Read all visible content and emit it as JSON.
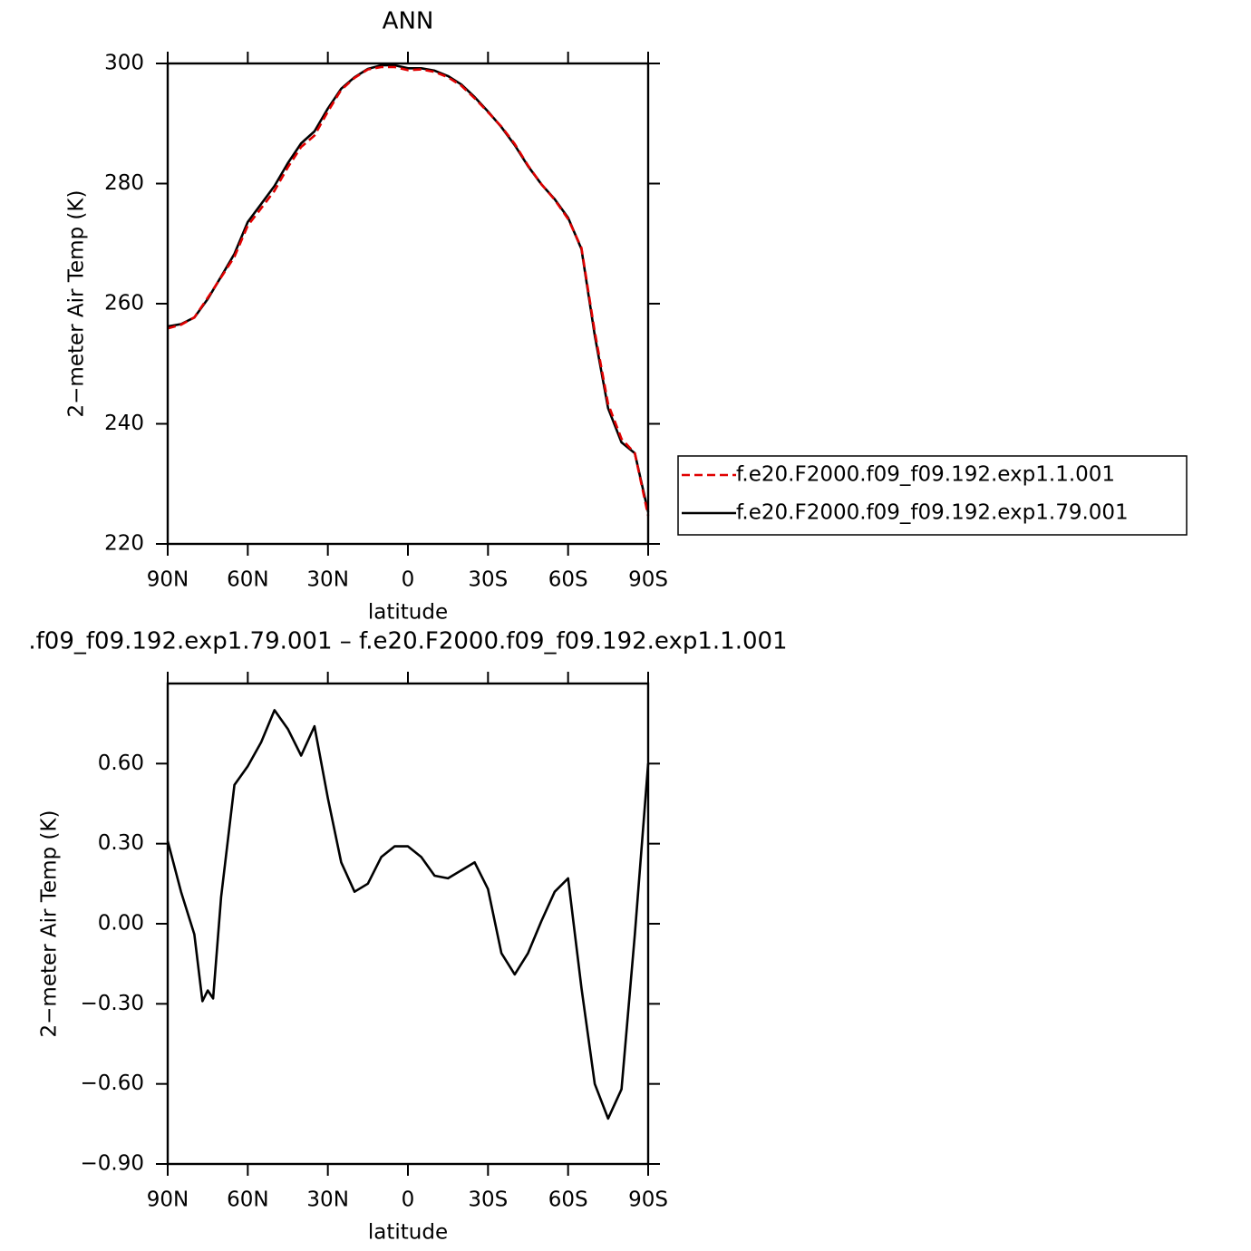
{
  "chart_data": [
    {
      "type": "line",
      "title": "ANN",
      "x_label": "latitude",
      "y_label": "2−meter Air Temp (K)",
      "x": [
        90,
        85,
        80,
        75,
        70,
        65,
        60,
        55,
        50,
        45,
        40,
        35,
        30,
        25,
        20,
        15,
        10,
        5,
        0,
        -5,
        -10,
        -15,
        -20,
        -25,
        -30,
        -35,
        -40,
        -45,
        -50,
        -55,
        -60,
        -65,
        -70,
        -75,
        -80,
        -85,
        -90
      ],
      "xlim": [
        90,
        -90
      ],
      "xticks": [
        {
          "value": 90,
          "label": "90N"
        },
        {
          "value": 60,
          "label": "60N"
        },
        {
          "value": 30,
          "label": "30N"
        },
        0,
        {
          "value": -30,
          "label": "30S"
        },
        {
          "value": -60,
          "label": "60S"
        },
        {
          "value": -90,
          "label": "90S"
        }
      ],
      "ylim": [
        220,
        300
      ],
      "yticks": [
        220,
        240,
        260,
        280,
        300
      ],
      "legend": "right",
      "series": [
        {
          "name": "f.e20.F2000.f09_f09.192.exp1.1.001",
          "color": "#e00000",
          "line_style": "dashed",
          "values": [
            255.9,
            256.5,
            257.7,
            261.0,
            264.4,
            267.8,
            273.0,
            275.9,
            278.8,
            282.7,
            286.1,
            288.0,
            292.0,
            295.6,
            297.6,
            299.0,
            299.4,
            299.4,
            298.9,
            299.0,
            298.6,
            297.7,
            296.3,
            294.2,
            291.9,
            289.5,
            286.6,
            283.0,
            279.9,
            277.3,
            274.1,
            269.3,
            255.3,
            243.3,
            237.5,
            235.1,
            224.7
          ]
        },
        {
          "name": "f.e20.F2000.f09_f09.192.exp1.79.001",
          "color": "#000000",
          "line_style": "solid",
          "values": [
            256.2,
            256.6,
            257.7,
            260.8,
            264.5,
            268.3,
            273.6,
            276.6,
            279.6,
            283.4,
            286.7,
            288.7,
            292.5,
            295.8,
            297.7,
            299.1,
            299.7,
            299.7,
            299.2,
            299.2,
            298.8,
            297.9,
            296.5,
            294.4,
            292.0,
            289.4,
            286.4,
            282.9,
            279.9,
            277.4,
            274.3,
            269.1,
            254.7,
            242.6,
            236.9,
            235.1,
            225.3
          ]
        }
      ]
    },
    {
      "type": "line",
      "title": ".f09_f09.192.exp1.79.001 – f.e20.F2000.f09_f09.192.exp1.1.001",
      "x_label": "latitude",
      "y_label": "2−meter Air Temp (K)",
      "x": [
        90,
        85,
        80,
        77,
        75,
        73,
        70,
        65,
        60,
        55,
        50,
        45,
        40,
        35,
        30,
        25,
        20,
        15,
        10,
        5,
        0,
        -5,
        -10,
        -15,
        -20,
        -25,
        -30,
        -35,
        -40,
        -45,
        -50,
        -55,
        -60,
        -65,
        -70,
        -75,
        -80,
        -85,
        -90
      ],
      "xlim": [
        90,
        -90
      ],
      "xticks": [
        {
          "value": 90,
          "label": "90N"
        },
        {
          "value": 60,
          "label": "60N"
        },
        {
          "value": 30,
          "label": "30N"
        },
        0,
        {
          "value": -30,
          "label": "30S"
        },
        {
          "value": -60,
          "label": "60S"
        },
        {
          "value": -90,
          "label": "90S"
        }
      ],
      "ylim": [
        -0.9,
        0.9
      ],
      "yticks": [
        {
          "value": -0.9,
          "label": "−0.90"
        },
        {
          "value": -0.6,
          "label": "−0.60"
        },
        {
          "value": -0.3,
          "label": "−0.30"
        },
        {
          "value": 0,
          "label": "0.00"
        },
        {
          "value": 0.3,
          "label": "0.30"
        },
        {
          "value": 0.6,
          "label": "0.60"
        }
      ],
      "color": "#000000",
      "values": [
        0.31,
        0.12,
        -0.04,
        -0.29,
        -0.25,
        -0.28,
        0.1,
        0.52,
        0.59,
        0.68,
        0.8,
        0.73,
        0.63,
        0.74,
        0.47,
        0.23,
        0.12,
        0.15,
        0.25,
        0.29,
        0.29,
        0.25,
        0.18,
        0.17,
        0.2,
        0.23,
        0.13,
        -0.11,
        -0.19,
        -0.11,
        0.01,
        0.12,
        0.17,
        -0.24,
        -0.6,
        -0.73,
        -0.62,
        -0.04,
        0.6
      ]
    }
  ]
}
